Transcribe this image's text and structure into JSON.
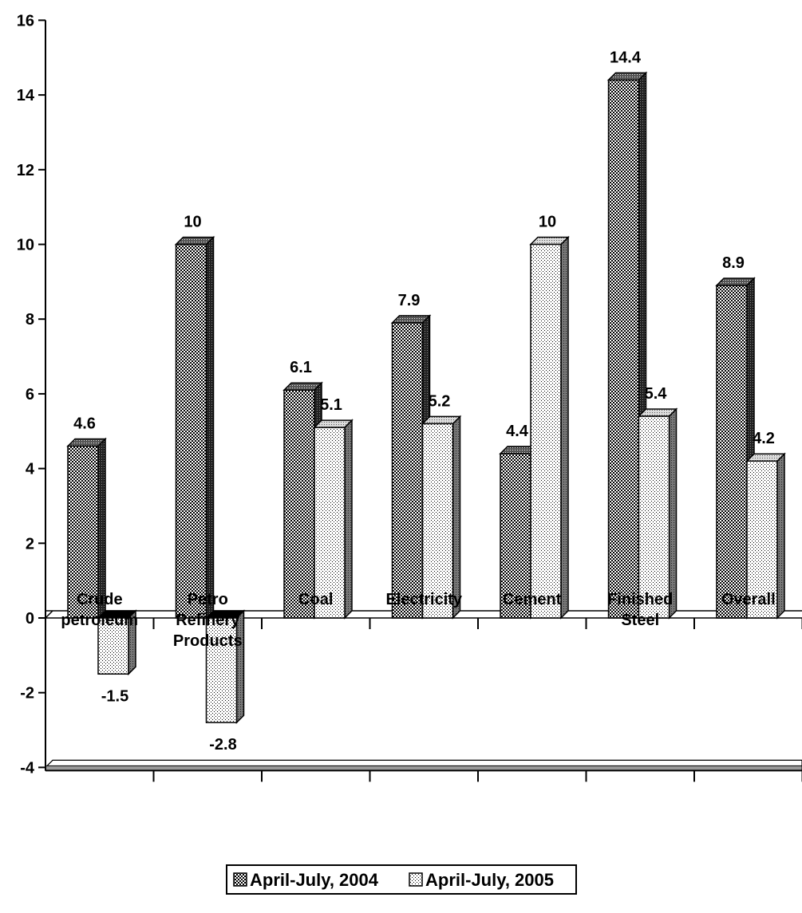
{
  "chart_data": {
    "type": "bar",
    "categories": [
      "Crude petroleum",
      "Petro Refinery Products",
      "Coal",
      "Electricity",
      "Cement",
      "Finished Steel",
      "Overall"
    ],
    "series": [
      {
        "name": "April-July, 2004",
        "values": [
          4.6,
          10,
          6.1,
          7.9,
          4.4,
          14.4,
          8.9
        ],
        "labels": [
          "4.6",
          "10",
          "6.1",
          "7.9",
          "4.4",
          "14.4",
          "8.9"
        ],
        "pattern": "dark-checker"
      },
      {
        "name": "April-July, 2005",
        "values": [
          -1.5,
          -2.8,
          5.1,
          5.2,
          10,
          5.4,
          4.2
        ],
        "labels": [
          "-1.5",
          "-2.8",
          "5.1",
          "5.2",
          "10",
          "5.4",
          "4.2"
        ],
        "pattern": "light-dotted"
      }
    ],
    "ylim": [
      -4,
      16
    ],
    "yticks": [
      -4,
      -2,
      0,
      2,
      4,
      6,
      8,
      10,
      12,
      14,
      16
    ],
    "ytick_labels": [
      "-4",
      "-2",
      "0",
      "2",
      "4",
      "6",
      "8",
      "10",
      "12",
      "14",
      "16"
    ],
    "category_label_lines": [
      [
        "Crude",
        "petroleum"
      ],
      [
        "Petro",
        "Refinery",
        "Products"
      ],
      [
        "Coal"
      ],
      [
        "Electricity"
      ],
      [
        "Cement"
      ],
      [
        "Finished",
        "Steel"
      ],
      [
        "Overall"
      ]
    ],
    "legend_position": "bottom",
    "grid": false,
    "style": "3d"
  }
}
